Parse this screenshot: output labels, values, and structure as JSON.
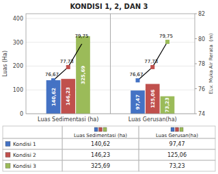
{
  "chart_data": {
    "type": "bar",
    "title": "KONDISI 1, 2, DAN 3",
    "categories": [
      "Luas Sedimentasi (ha)",
      "Luas Gerusan(ha)"
    ],
    "series": [
      {
        "name": "Kondisi 1",
        "color": "#4472C4",
        "values": [
          140.62,
          97.47
        ],
        "value_labels": [
          "140,62",
          "97,47"
        ]
      },
      {
        "name": "Kondisi 2",
        "color": "#C0504D",
        "values": [
          146.23,
          125.06
        ],
        "value_labels": [
          "146,23",
          "125,06"
        ]
      },
      {
        "name": "Kondisi 3",
        "color": "#9BBB59",
        "values": [
          325.69,
          73.23
        ],
        "value_labels": [
          "325,69",
          "73,23"
        ]
      }
    ],
    "line": {
      "type": "line",
      "axis": "y2",
      "color": "#000000",
      "marker": "square",
      "values": [
        76.67,
        77.73,
        79.75
      ],
      "value_labels": [
        "76,67",
        "77,73",
        "79,75"
      ]
    },
    "ylabel": "Luas (Ha)",
    "y2label": "ELv. Muka Air Rerata  (m)",
    "ylim": [
      0,
      420
    ],
    "yticks": [
      0,
      100,
      200,
      300,
      400
    ],
    "y2lim": [
      74,
      82
    ],
    "y2ticks": [
      74,
      76,
      78,
      80,
      82
    ],
    "grid": true,
    "data_labels": true
  }
}
